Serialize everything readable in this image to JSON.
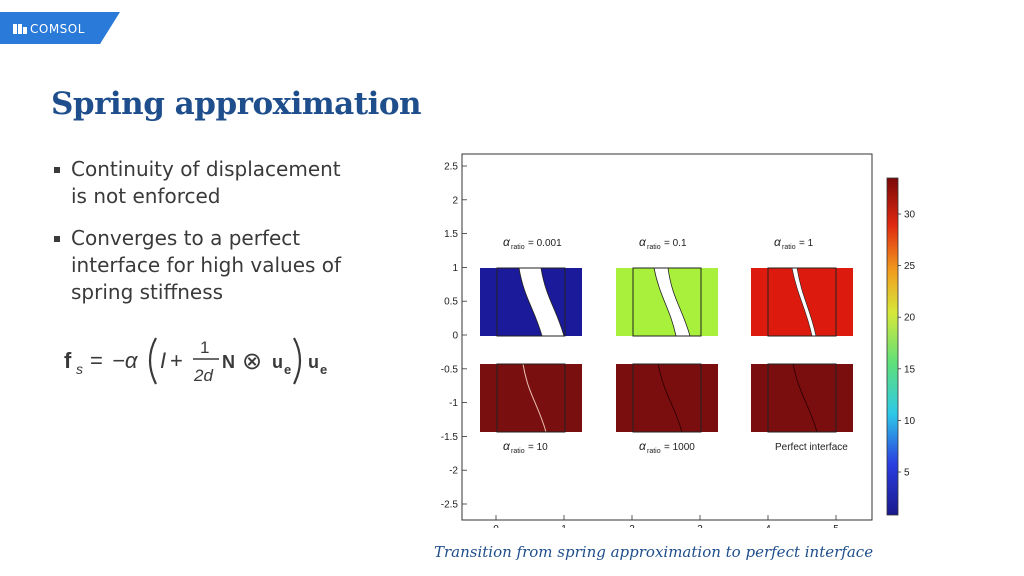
{
  "header": {
    "logo_text": "COMSOL",
    "accent_color": "#2a7ad9"
  },
  "title": "Spring approximation",
  "bullets": [
    {
      "line1": "Continuity of displacement",
      "line2": "is not enforced"
    },
    {
      "line1": "Converges to a perfect",
      "line2": "interface for high values of",
      "line3": "spring stiffness"
    }
  ],
  "formula": {
    "f": "f",
    "sub_s": "s",
    "eq": "=",
    "minus_alpha": "−α",
    "I": "I",
    "plus": "+",
    "num": "1",
    "den": "2d",
    "N": "N",
    "otimes": "⊗",
    "u": "u",
    "sub_e": "e"
  },
  "figure": {
    "y_ticks": [
      "2.5",
      "2",
      "1.5",
      "1",
      "0.5",
      "0",
      "-0.5",
      "-1",
      "-1.5",
      "-2",
      "-2.5"
    ],
    "x_ticks": [
      "0",
      "1",
      "2",
      "3",
      "4",
      "5"
    ],
    "colorbar_ticks": [
      "30",
      "25",
      "20",
      "15",
      "10",
      "5"
    ],
    "panels": [
      {
        "alpha_value": "= 0.001",
        "color": "#1a1a9a"
      },
      {
        "alpha_value": "= 0.1",
        "color": "#a8f03c"
      },
      {
        "alpha_value": "= 1",
        "color": "#dd1a0e"
      },
      {
        "alpha_value": "= 10",
        "color": "#7a0f0f"
      },
      {
        "alpha_value": "= 1000",
        "color": "#7a0d0d"
      },
      {
        "label": "Perfect interface",
        "color": "#7a0d0d"
      }
    ],
    "alpha_symbol": "α",
    "alpha_sub": "ratio"
  },
  "caption": "Transition from spring approximation to perfect interface"
}
